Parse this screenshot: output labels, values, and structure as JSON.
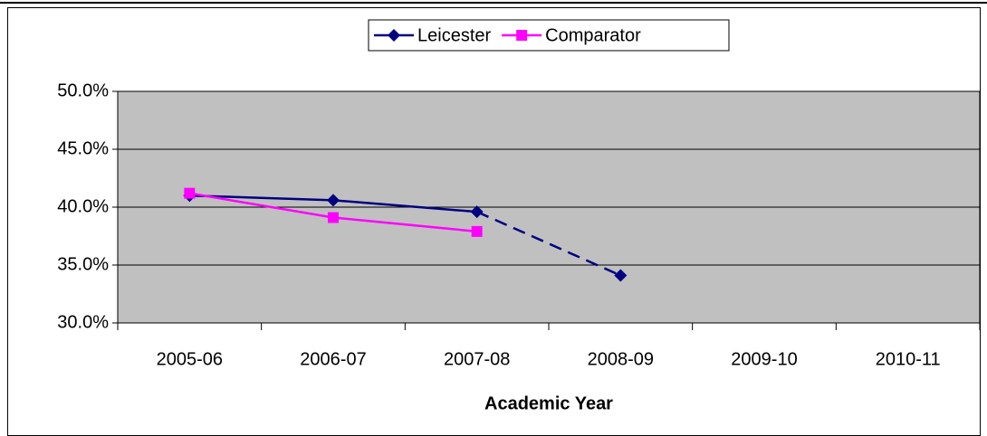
{
  "chart_data": {
    "type": "line",
    "categories": [
      "2005-06",
      "2006-07",
      "2007-08",
      "2008-09",
      "2009-10",
      "2010-11"
    ],
    "series": [
      {
        "name": "Leicester",
        "color": "#000080",
        "marker": "diamond",
        "dashed_from_index": 2,
        "values": [
          41.0,
          40.6,
          39.6,
          34.1,
          null,
          null
        ]
      },
      {
        "name": "Comparator",
        "color": "#ff00ff",
        "marker": "square",
        "values": [
          41.2,
          39.1,
          37.9,
          null,
          null,
          null
        ]
      }
    ],
    "ylim": [
      30,
      50
    ],
    "yticks": [
      {
        "value": 30,
        "label": "30.0%"
      },
      {
        "value": 35,
        "label": "35.0%"
      },
      {
        "value": 40,
        "label": "40.0%"
      },
      {
        "value": 45,
        "label": "45.0%"
      },
      {
        "value": 50,
        "label": "50.0%"
      }
    ],
    "xlabel": "Academic Year",
    "grid": true,
    "legend": "top",
    "plot_background": "#c0c0c0"
  }
}
